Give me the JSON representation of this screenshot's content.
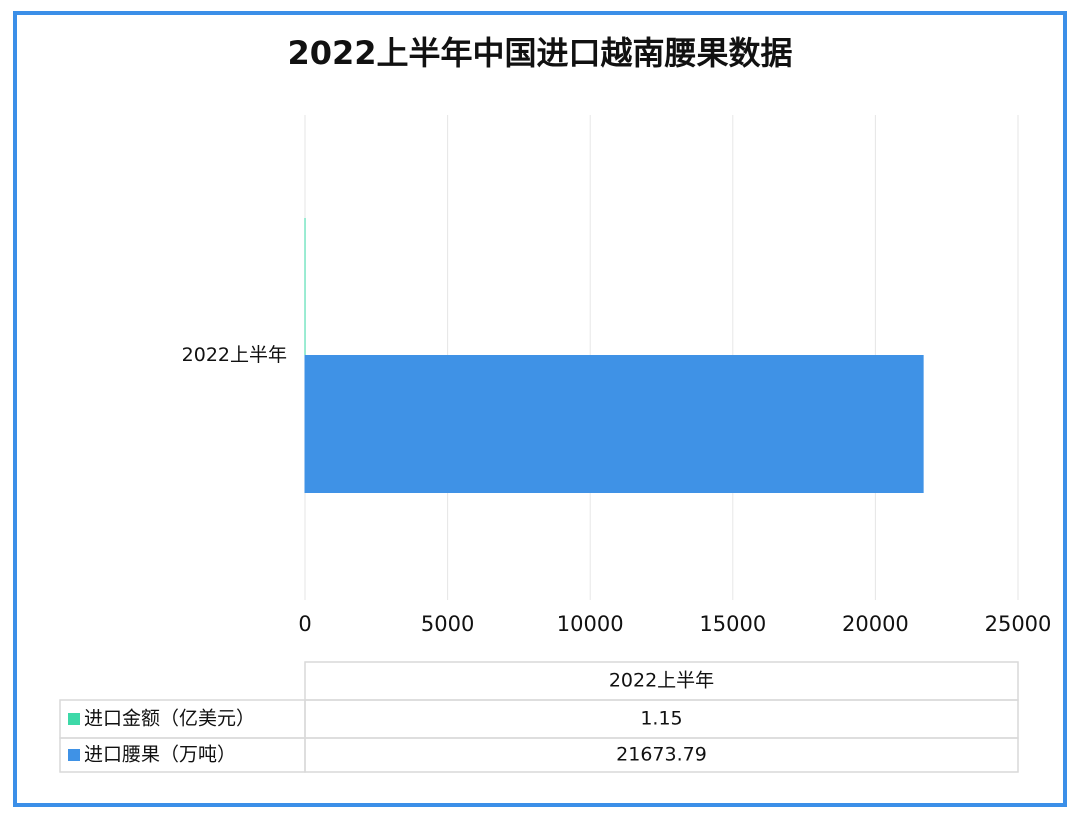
{
  "chart_data": {
    "type": "bar",
    "orientation": "horizontal",
    "title": "2022上半年中国进口越南腰果数据",
    "categories": [
      "2022上半年"
    ],
    "series": [
      {
        "name": "进口金额（亿美元）",
        "color": "#3dd9a8",
        "values": [
          1.15
        ]
      },
      {
        "name": "进口腰果（万吨）",
        "color": "#3f92e6",
        "values": [
          21673.79
        ]
      }
    ],
    "xlim": [
      0,
      25000
    ],
    "xticks": [
      0,
      5000,
      10000,
      15000,
      20000,
      25000
    ],
    "grid": true
  }
}
